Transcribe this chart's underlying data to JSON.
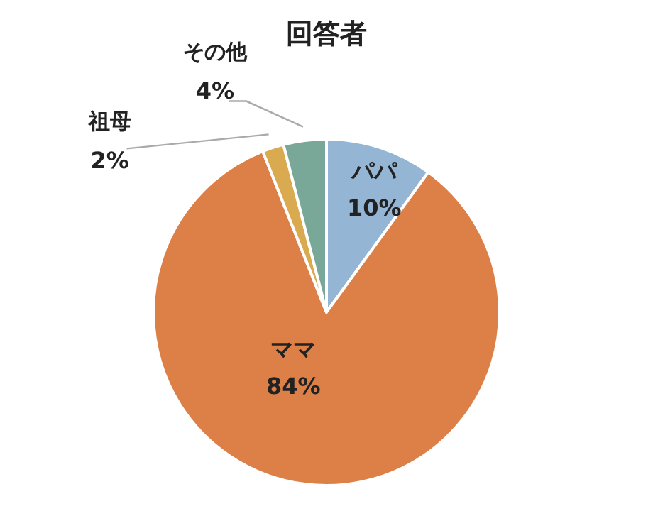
{
  "chart_data": {
    "type": "pie",
    "title": "回答者",
    "categories": [
      "パパ",
      "ママ",
      "祖母",
      "その他"
    ],
    "values": [
      10,
      84,
      2,
      4
    ],
    "colors": [
      "#94b6d4",
      "#dd8048",
      "#d9aa50",
      "#7aa898"
    ],
    "value_labels": [
      "10%",
      "84%",
      "2%",
      "4%"
    ]
  }
}
